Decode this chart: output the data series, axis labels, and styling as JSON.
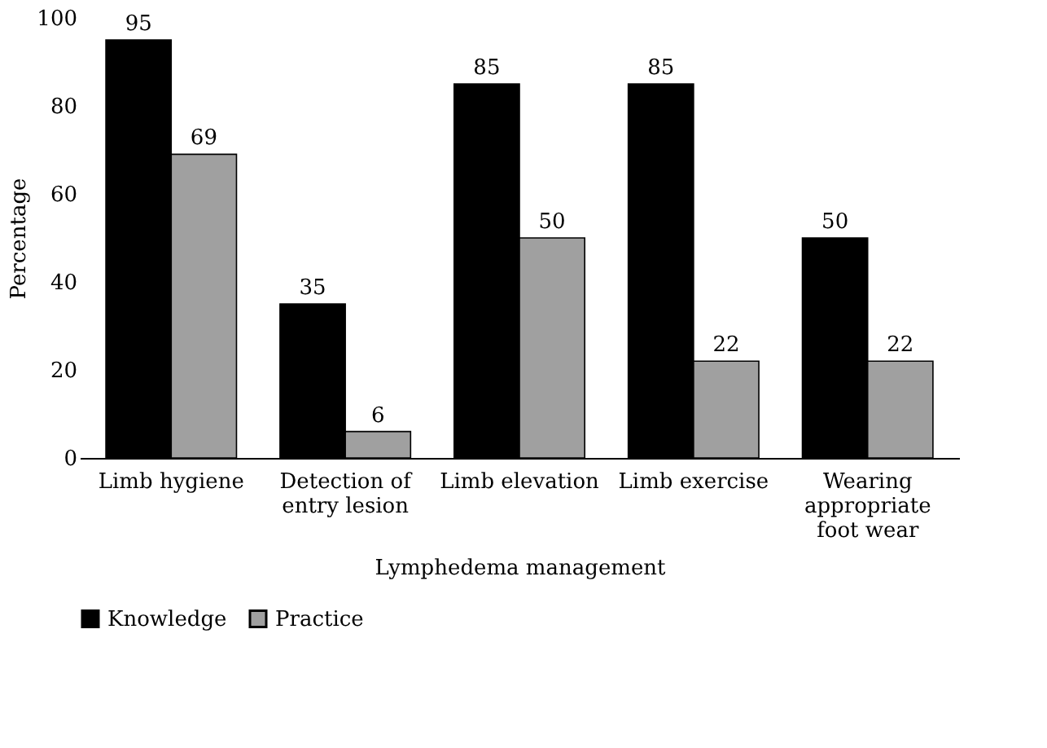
{
  "chart_data": {
    "type": "bar",
    "xlabel": "Lymphedema management",
    "ylabel": "Percentage",
    "categories": [
      "Limb hygiene",
      "Detection of entry lesion",
      "Limb elevation",
      "Limb exercise",
      "Wearing appropriate foot wear"
    ],
    "series": [
      {
        "name": "Knowledge",
        "color": "#000000",
        "values": [
          95,
          35,
          85,
          85,
          50
        ]
      },
      {
        "name": "Practice",
        "color": "#a0a0a0",
        "values": [
          69,
          6,
          50,
          22,
          22
        ]
      }
    ],
    "ylim": [
      0,
      100
    ],
    "yticks": [
      0,
      20,
      40,
      60,
      80,
      100
    ],
    "grid": false,
    "legend": "bottom",
    "data_labels": true
  }
}
